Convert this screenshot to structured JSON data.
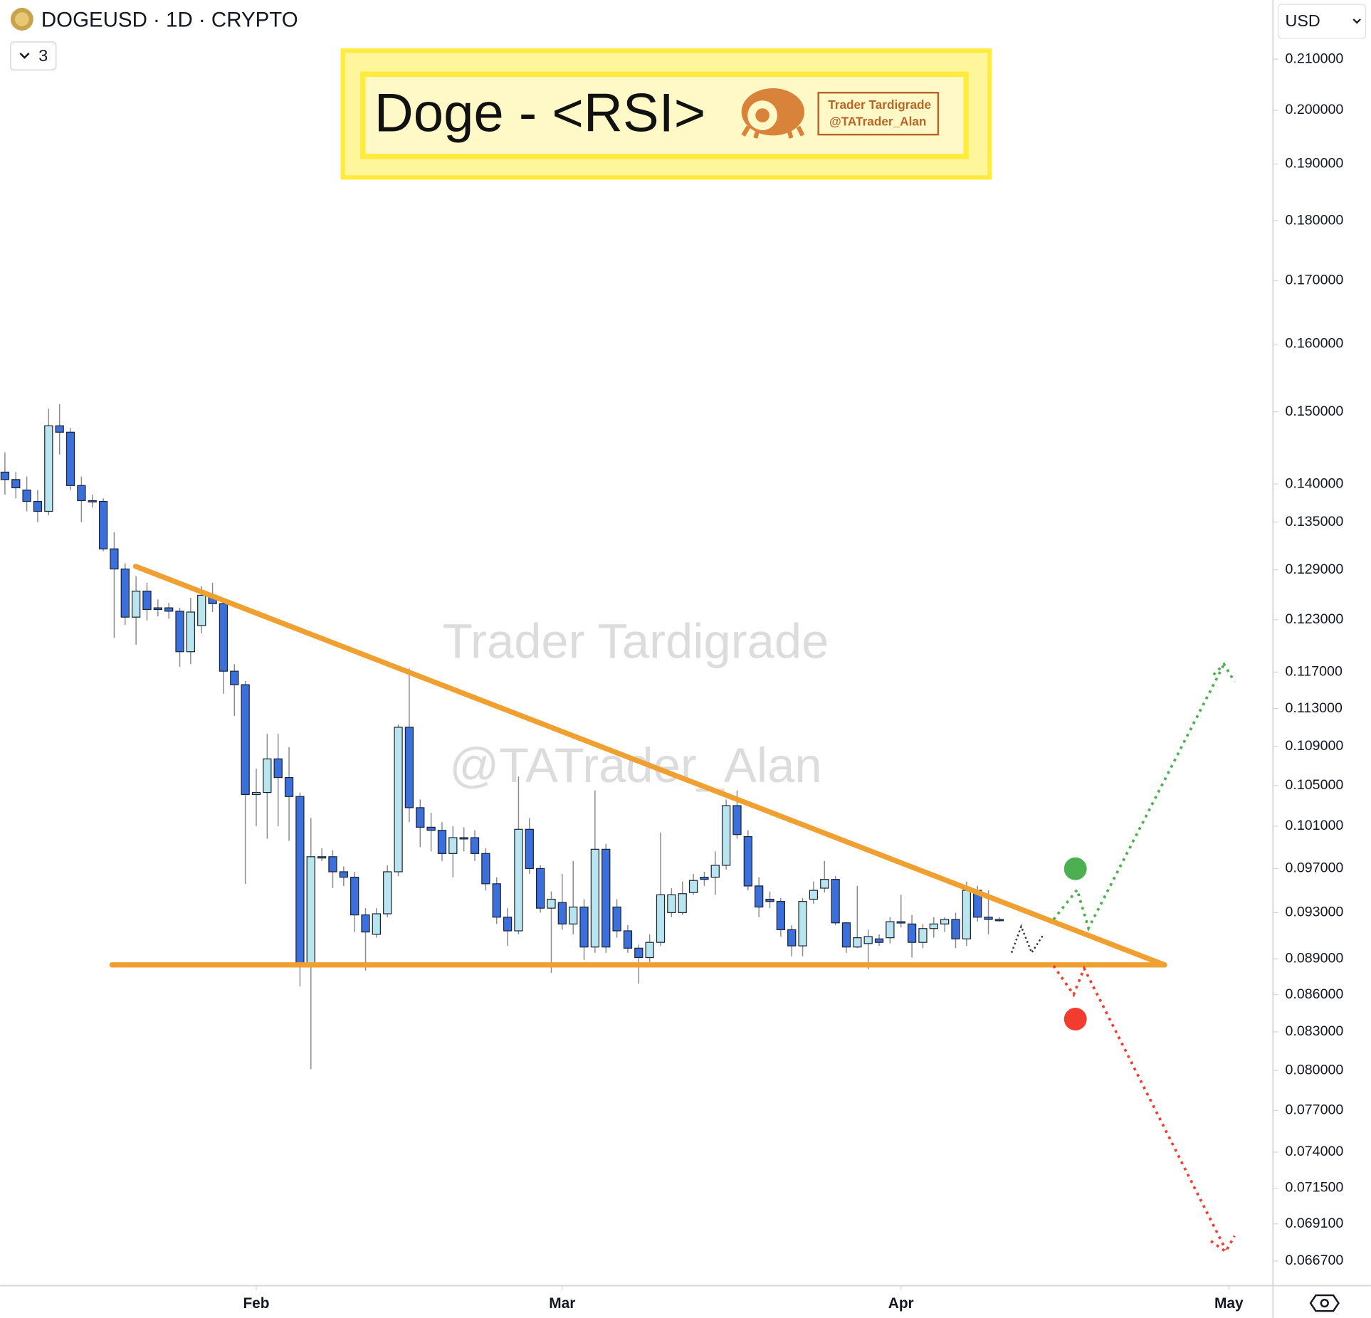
{
  "chart_data": {
    "type": "candlestick",
    "title": "DOGEUSD · 1D · CRYPTO",
    "indicator_count": "3",
    "currency": "USD",
    "banner": "Doge - <RSI>",
    "logo_name": "Trader Tardigrade",
    "logo_handle": "@TATrader_Alan",
    "watermark_name": "Trader Tardigrade",
    "watermark_handle": "@TATrader_Alan",
    "log_scale": true,
    "up_color": "#b9e6ee",
    "down_color": "#3a6fdc",
    "xlim": [
      8.56,
      124.96
    ],
    "xticks": [
      {
        "value": 32,
        "label": "Feb"
      },
      {
        "value": 60,
        "label": "Mar"
      },
      {
        "value": 91,
        "label": "Apr"
      },
      {
        "value": 121,
        "label": "May"
      }
    ],
    "ylim": [
      0.0652,
      0.2222
    ],
    "yticks": [
      {
        "value": 0.21,
        "label": "0.210000"
      },
      {
        "value": 0.2,
        "label": "0.200000"
      },
      {
        "value": 0.19,
        "label": "0.190000"
      },
      {
        "value": 0.18,
        "label": "0.180000"
      },
      {
        "value": 0.17,
        "label": "0.170000"
      },
      {
        "value": 0.16,
        "label": "0.160000"
      },
      {
        "value": 0.15,
        "label": "0.150000"
      },
      {
        "value": 0.14,
        "label": "0.140000"
      },
      {
        "value": 0.135,
        "label": "0.135000"
      },
      {
        "value": 0.129,
        "label": "0.129000"
      },
      {
        "value": 0.123,
        "label": "0.123000"
      },
      {
        "value": 0.117,
        "label": "0.117000"
      },
      {
        "value": 0.113,
        "label": "0.113000"
      },
      {
        "value": 0.109,
        "label": "0.109000"
      },
      {
        "value": 0.105,
        "label": "0.105000"
      },
      {
        "value": 0.101,
        "label": "0.101000"
      },
      {
        "value": 0.097,
        "label": "0.097000"
      },
      {
        "value": 0.093,
        "label": "0.093000"
      },
      {
        "value": 0.089,
        "label": "0.089000"
      },
      {
        "value": 0.086,
        "label": "0.086000"
      },
      {
        "value": 0.083,
        "label": "0.083000"
      },
      {
        "value": 0.08,
        "label": "0.080000"
      },
      {
        "value": 0.077,
        "label": "0.077000"
      },
      {
        "value": 0.074,
        "label": "0.074000"
      },
      {
        "value": 0.0715,
        "label": "0.071500"
      },
      {
        "value": 0.0691,
        "label": "0.069100"
      },
      {
        "value": 0.0667,
        "label": "0.066700"
      }
    ],
    "x": [
      9,
      10,
      11,
      12,
      13,
      14,
      15,
      16,
      17,
      18,
      19,
      20,
      21,
      22,
      23,
      24,
      25,
      26,
      27,
      28,
      29,
      30,
      31,
      32,
      33,
      34,
      35,
      36,
      37,
      38,
      39,
      40,
      41,
      42,
      43,
      44,
      45,
      46,
      47,
      48,
      49,
      50,
      51,
      52,
      53,
      54,
      55,
      56,
      57,
      58,
      59,
      60,
      61,
      62,
      63,
      64,
      65,
      66,
      67,
      68,
      69,
      70,
      71,
      72,
      73,
      74,
      75,
      76,
      77,
      78,
      79,
      80,
      81,
      82,
      83,
      84,
      85,
      86,
      87,
      88,
      89,
      90,
      91,
      92,
      93,
      94,
      95,
      96,
      97,
      98,
      99,
      100
    ],
    "open": [
      0.1416,
      0.1406,
      0.1392,
      0.1377,
      0.1364,
      0.148,
      0.1471,
      0.1398,
      0.1378,
      0.1377,
      0.1316,
      0.1291,
      0.1233,
      0.1264,
      0.1244,
      0.1244,
      0.124,
      0.1193,
      0.1223,
      0.1259,
      0.1249,
      0.1171,
      0.1156,
      0.1041,
      0.1043,
      0.1077,
      0.1058,
      0.1039,
      0.0885,
      0.0981,
      0.0981,
      0.0967,
      0.0962,
      0.0928,
      0.0911,
      0.0929,
      0.0967,
      0.111,
      0.1028,
      0.1009,
      0.1006,
      0.0984,
      0.0999,
      0.0999,
      0.0984,
      0.0956,
      0.0926,
      0.0914,
      0.1007,
      0.097,
      0.0934,
      0.0939,
      0.092,
      0.0935,
      0.09,
      0.0988,
      0.0935,
      0.0914,
      0.0899,
      0.0891,
      0.0904,
      0.093,
      0.093,
      0.0948,
      0.0962,
      0.0962,
      0.0973,
      0.103,
      0.1,
      0.0954,
      0.0942,
      0.094,
      0.0915,
      0.0901,
      0.0942,
      0.0952,
      0.096,
      0.0921,
      0.09,
      0.0903,
      0.0907,
      0.0908,
      0.0922,
      0.092,
      0.0904,
      0.0916,
      0.092,
      0.0924,
      0.0907,
      0.095,
      0.0926,
      0.0924
    ],
    "high": [
      0.1443,
      0.1416,
      0.141,
      0.1392,
      0.1504,
      0.1511,
      0.1477,
      0.141,
      0.1386,
      0.1381,
      0.1337,
      0.1298,
      0.1282,
      0.1274,
      0.1254,
      0.125,
      0.1244,
      0.1256,
      0.127,
      0.1274,
      0.1256,
      0.1179,
      0.116,
      0.1067,
      0.1103,
      0.1103,
      0.1089,
      0.1043,
      0.1018,
      0.0989,
      0.0987,
      0.0972,
      0.0967,
      0.0934,
      0.0934,
      0.0973,
      0.1113,
      0.1174,
      0.1036,
      0.1023,
      0.1014,
      0.101,
      0.1009,
      0.1006,
      0.0989,
      0.0962,
      0.0934,
      0.1059,
      0.1018,
      0.0973,
      0.0949,
      0.0965,
      0.0977,
      0.0942,
      0.1045,
      0.0993,
      0.0942,
      0.0919,
      0.0902,
      0.0911,
      0.1004,
      0.0952,
      0.0958,
      0.0965,
      0.0967,
      0.0986,
      0.1036,
      0.1045,
      0.1006,
      0.0962,
      0.0949,
      0.0943,
      0.0919,
      0.0943,
      0.0958,
      0.0977,
      0.0963,
      0.0922,
      0.0954,
      0.0915,
      0.0911,
      0.0926,
      0.0946,
      0.0928,
      0.092,
      0.0926,
      0.0926,
      0.093,
      0.0958,
      0.0954,
      0.095,
      0.0926
    ],
    "low": [
      0.1386,
      0.1381,
      0.1364,
      0.135,
      0.1359,
      0.144,
      0.1392,
      0.135,
      0.1369,
      0.1313,
      0.1209,
      0.1224,
      0.1201,
      0.1229,
      0.1234,
      0.1231,
      0.1176,
      0.1179,
      0.1214,
      0.1239,
      0.1146,
      0.1122,
      0.0956,
      0.101,
      0.0998,
      0.101,
      0.0996,
      0.0867,
      0.0801,
      0.0977,
      0.0952,
      0.0954,
      0.0913,
      0.088,
      0.0908,
      0.0926,
      0.0963,
      0.1014,
      0.099,
      0.0986,
      0.0977,
      0.0962,
      0.0986,
      0.0977,
      0.095,
      0.092,
      0.0901,
      0.0911,
      0.0965,
      0.093,
      0.0878,
      0.0915,
      0.0911,
      0.0889,
      0.0895,
      0.0895,
      0.0908,
      0.0895,
      0.0869,
      0.0887,
      0.0901,
      0.0926,
      0.0928,
      0.0946,
      0.0954,
      0.0946,
      0.0969,
      0.0998,
      0.095,
      0.0926,
      0.0934,
      0.0909,
      0.0892,
      0.0892,
      0.0938,
      0.0948,
      0.0919,
      0.0895,
      0.0899,
      0.0881,
      0.0901,
      0.0903,
      0.0917,
      0.0891,
      0.0899,
      0.0908,
      0.0913,
      0.0899,
      0.0901,
      0.0922,
      0.0911,
      0.0922
    ],
    "close": [
      0.1406,
      0.1395,
      0.1377,
      0.1364,
      0.148,
      0.1471,
      0.1398,
      0.1378,
      0.1377,
      0.1316,
      0.1291,
      0.1233,
      0.1264,
      0.1242,
      0.1242,
      0.124,
      0.1193,
      0.1239,
      0.1259,
      0.1249,
      0.1171,
      0.1156,
      0.1041,
      0.1043,
      0.1077,
      0.1058,
      0.1039,
      0.0885,
      0.0981,
      0.098,
      0.0967,
      0.0962,
      0.0928,
      0.0913,
      0.0929,
      0.0967,
      0.111,
      0.1028,
      0.1009,
      0.1006,
      0.0984,
      0.0999,
      0.0998,
      0.0984,
      0.0956,
      0.0926,
      0.0914,
      0.1007,
      0.097,
      0.0934,
      0.0942,
      0.092,
      0.0935,
      0.09,
      0.0988,
      0.09,
      0.0914,
      0.0899,
      0.0891,
      0.0904,
      0.0946,
      0.0946,
      0.0947,
      0.0959,
      0.096,
      0.0973,
      0.103,
      0.1002,
      0.0954,
      0.0935,
      0.094,
      0.0915,
      0.0901,
      0.094,
      0.095,
      0.096,
      0.0921,
      0.09,
      0.0908,
      0.0909,
      0.0904,
      0.0922,
      0.0921,
      0.0904,
      0.0916,
      0.092,
      0.0924,
      0.0907,
      0.095,
      0.0926,
      0.0924,
      0.0923
    ]
  }
}
